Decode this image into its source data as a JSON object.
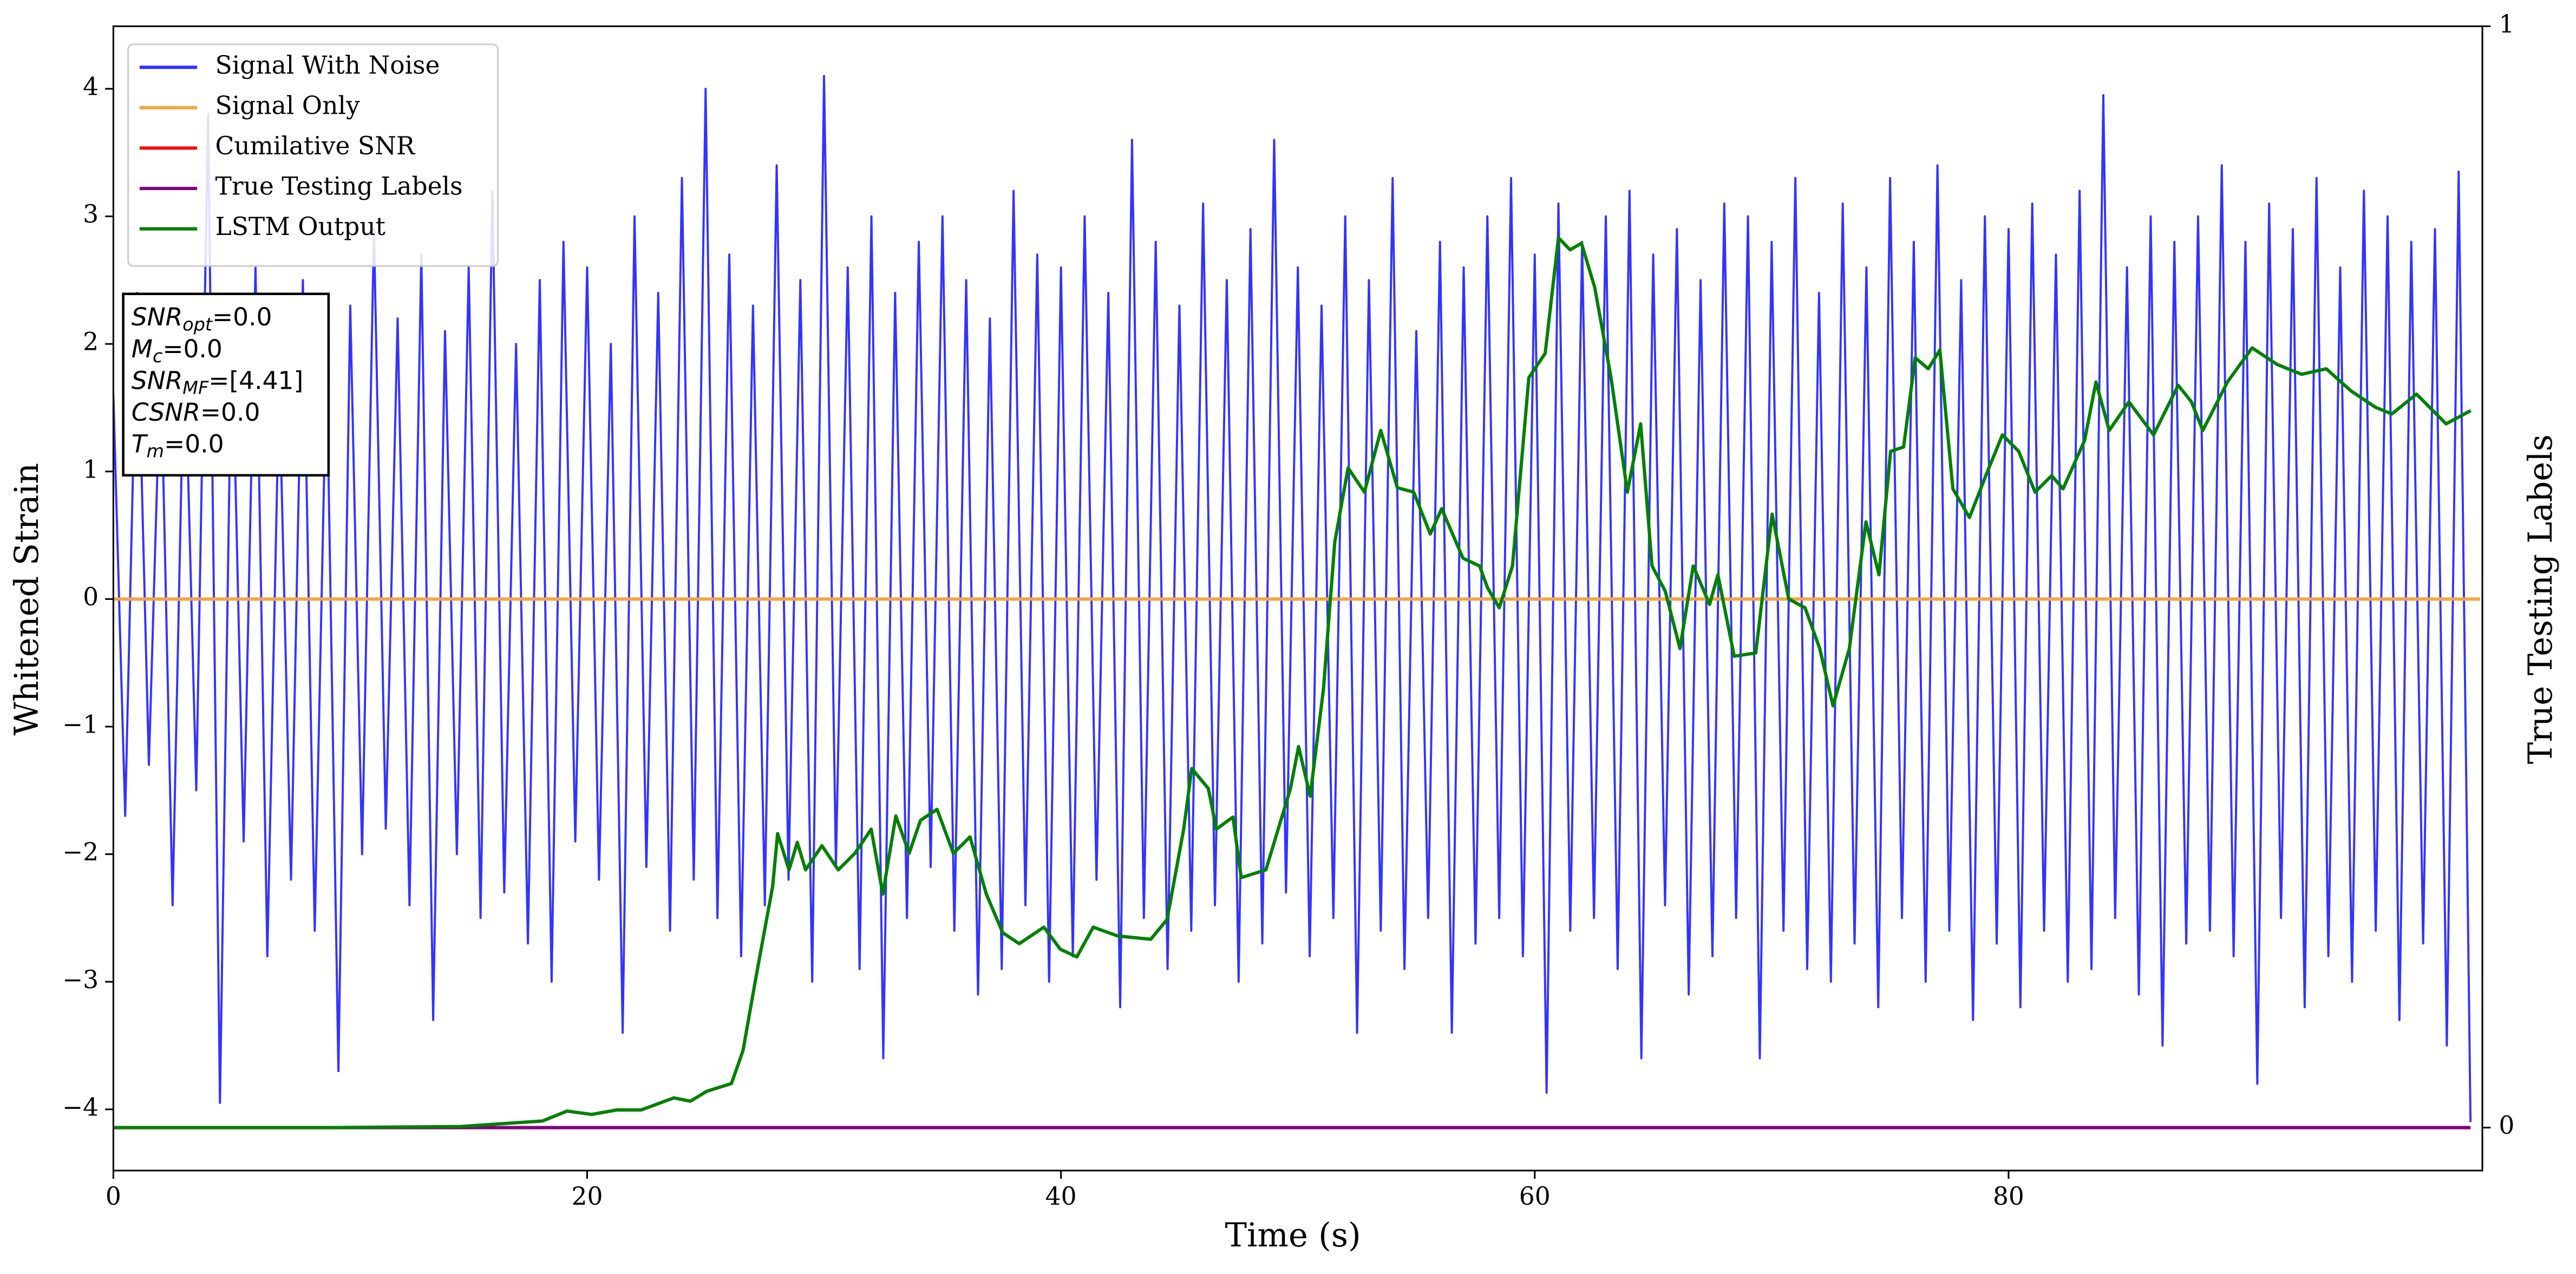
{
  "chart_data": {
    "type": "line",
    "xlabel": "Time (s)",
    "ylabel": "Whitened Strain",
    "y2label": "True Testing Labels",
    "xlim": [
      0,
      100
    ],
    "xticks": [
      0,
      20,
      40,
      60,
      80
    ],
    "ylim": [
      -4.48,
      4.49
    ],
    "yticks": [
      {
        "value": -4,
        "label": "−4"
      },
      {
        "value": -3,
        "label": "−3"
      },
      {
        "value": -2,
        "label": "−2"
      },
      {
        "value": -1,
        "label": "−1"
      },
      0,
      1,
      2,
      3,
      4
    ],
    "y2lim": [
      -0.039,
      1
    ],
    "y2ticks": [
      0,
      1
    ],
    "legend": "upper left",
    "series": [
      {
        "name": "Signal With Noise",
        "color": "#3333ff",
        "x": [
          0,
          0.5,
          1,
          1.5,
          2,
          2.5,
          3,
          3.5,
          4,
          4.5,
          5,
          5.5,
          6,
          6.5,
          7,
          7.5,
          8,
          8.5,
          9,
          9.5,
          10,
          10.5,
          11,
          11.5,
          12,
          12.5,
          13,
          13.5,
          14,
          14.5,
          15,
          15.5,
          16,
          16.5,
          17,
          17.5,
          18,
          18.5,
          19,
          19.5,
          20,
          20.5,
          21,
          21.5,
          22,
          22.5,
          23,
          23.5,
          24,
          24.5,
          25,
          25.5,
          26,
          26.5,
          27,
          27.5,
          28,
          28.5,
          29,
          29.5,
          30,
          30.5,
          31,
          31.5,
          32,
          32.5,
          33,
          33.5,
          34,
          34.5,
          35,
          35.5,
          36,
          36.5,
          37,
          37.5,
          38,
          38.5,
          39,
          39.5,
          40,
          40.5,
          41,
          41.5,
          42,
          42.5,
          43,
          43.5,
          44,
          44.5,
          45,
          45.5,
          46,
          46.5,
          47,
          47.5,
          48,
          48.5,
          49,
          49.5,
          50,
          50.5,
          51,
          51.5,
          52,
          52.5,
          53,
          53.5,
          54,
          54.5,
          55,
          55.5,
          56,
          56.5,
          57,
          57.5,
          58,
          58.5,
          59,
          59.5,
          60,
          60.5,
          61,
          61.5,
          62,
          62.5,
          63,
          63.5,
          64,
          64.5,
          65,
          65.5,
          66,
          66.5,
          67,
          67.5,
          68,
          68.5,
          69,
          69.5,
          70,
          70.5,
          71,
          71.5,
          72,
          72.5,
          73,
          73.5,
          74,
          74.5,
          75,
          75.5,
          76,
          76.5,
          77,
          77.5,
          78,
          78.5,
          79,
          79.5,
          80,
          80.5,
          81,
          81.5,
          82,
          82.5,
          83,
          83.5,
          84,
          84.5,
          85,
          85.5,
          86,
          86.5,
          87,
          87.5,
          88,
          88.5,
          89,
          89.5,
          90,
          90.5,
          91,
          91.5,
          92,
          92.5,
          93,
          93.5,
          94,
          94.5,
          95,
          95.5,
          96,
          96.5,
          97,
          97.5,
          98,
          98.5,
          99,
          99.5
        ],
        "values": [
          1.6,
          -1.7,
          2.4,
          -1.3,
          1.9,
          -2.4,
          2.1,
          -1.5,
          3.8,
          -3.95,
          2.2,
          -1.9,
          2.6,
          -2.8,
          1.7,
          -2.2,
          2.5,
          -2.6,
          1.9,
          -3.7,
          2.3,
          -2.0,
          2.9,
          -1.8,
          2.2,
          -2.4,
          2.7,
          -3.3,
          2.1,
          -2.0,
          2.6,
          -2.5,
          3.2,
          -2.3,
          2.0,
          -2.7,
          2.5,
          -3.0,
          2.8,
          -1.9,
          2.6,
          -2.2,
          2.0,
          -3.4,
          3.0,
          -2.1,
          2.4,
          -2.6,
          3.3,
          -2.2,
          4.0,
          -2.5,
          2.7,
          -2.8,
          2.3,
          -2.4,
          3.4,
          -2.2,
          2.5,
          -3.0,
          4.1,
          -2.1,
          2.6,
          -2.9,
          3.0,
          -3.6,
          2.4,
          -2.5,
          2.8,
          -2.1,
          3.0,
          -2.6,
          2.5,
          -3.1,
          2.2,
          -2.9,
          3.2,
          -2.4,
          2.7,
          -3.0,
          2.6,
          -2.8,
          3.0,
          -2.2,
          2.4,
          -3.2,
          3.6,
          -2.5,
          2.8,
          -2.9,
          2.3,
          -2.6,
          3.1,
          -2.4,
          2.5,
          -3.0,
          2.9,
          -2.7,
          3.6,
          -2.3,
          2.6,
          -2.8,
          2.3,
          -2.5,
          3.0,
          -3.4,
          2.5,
          -2.6,
          3.3,
          -2.9,
          2.1,
          -2.5,
          2.8,
          -3.4,
          2.6,
          -2.7,
          3.0,
          -2.5,
          3.3,
          -2.8,
          2.7,
          -3.87,
          3.1,
          -2.6,
          2.8,
          -2.5,
          3.0,
          -2.9,
          3.2,
          -3.6,
          2.7,
          -2.4,
          2.9,
          -3.1,
          2.5,
          -2.8,
          3.1,
          -2.5,
          3.0,
          -3.6,
          2.8,
          -2.6,
          3.3,
          -2.9,
          2.4,
          -3.0,
          3.1,
          -2.7,
          2.6,
          -3.2,
          3.3,
          -2.5,
          2.8,
          -3.0,
          3.4,
          -2.6,
          2.5,
          -3.3,
          3.0,
          -2.7,
          2.9,
          -3.2,
          3.1,
          -2.6,
          2.7,
          -3.0,
          3.2,
          -2.9,
          3.95,
          -2.5,
          2.6,
          -3.1,
          3.0,
          -3.5,
          2.8,
          -2.7,
          3.0,
          -2.6,
          3.4,
          -2.8,
          2.8,
          -3.8,
          3.1,
          -2.5,
          2.9,
          -3.2,
          3.3,
          -2.8,
          2.6,
          -3.0,
          3.2,
          -2.6,
          3.0,
          -3.3,
          2.8,
          -2.7,
          2.9,
          -3.5,
          3.35,
          -4.1
        ]
      },
      {
        "name": "Signal Only",
        "color": "#f5a540",
        "x": [
          0,
          99.9
        ],
        "values": [
          0,
          0
        ]
      },
      {
        "name": "Cumilative SNR",
        "color": "red",
        "axis": "y2",
        "x": [
          0,
          99.5
        ],
        "values": [
          0,
          0
        ]
      },
      {
        "name": "True Testing Labels",
        "color": "purple",
        "axis": "y2",
        "x": [
          0,
          99.5
        ],
        "values": [
          0,
          0
        ]
      },
      {
        "name": "LSTM Output",
        "color": "green",
        "axis": "y2",
        "x": [
          0,
          9.09,
          14.64,
          16.03,
          18.11,
          19.15,
          20.19,
          21.24,
          22.28,
          23.66,
          24.36,
          25.05,
          26.09,
          26.58,
          27.13,
          27.83,
          28.04,
          28.52,
          28.87,
          29.22,
          29.91,
          30.6,
          31.3,
          31.99,
          32.48,
          33.03,
          33.59,
          34.07,
          34.77,
          35.46,
          36.16,
          36.85,
          37.54,
          38.24,
          39.28,
          39.97,
          40.67,
          41.36,
          42.4,
          43.79,
          44.48,
          45.18,
          45.52,
          46.22,
          46.56,
          47.26,
          47.61,
          48.65,
          49.69,
          50.03,
          50.52,
          51.08,
          51.56,
          52.12,
          52.81,
          53.5,
          54.2,
          54.89,
          55.59,
          56.07,
          56.97,
          57.67,
          58.01,
          58.5,
          59.06,
          59.75,
          60.44,
          61.0,
          61.49,
          61.97,
          62.53,
          63.22,
          63.91,
          64.47,
          64.95,
          65.51,
          66.13,
          66.69,
          67.38,
          67.73,
          68.42,
          69.33,
          70.02,
          70.72,
          71.41,
          72.03,
          72.59,
          73.28,
          73.98,
          74.53,
          75.02,
          75.57,
          76.06,
          76.61,
          77.1,
          77.65,
          78.35,
          79.04,
          79.74,
          80.43,
          81.12,
          81.82,
          82.3,
          83.21,
          83.69,
          84.25,
          85.08,
          86.12,
          87.16,
          87.72,
          88.2,
          89.24,
          90.28,
          91.33,
          92.37,
          93.41,
          94.45,
          95.49,
          96.18,
          97.22,
          98.47,
          99.51
        ],
        "values": [
          0,
          0,
          0.001,
          0.003,
          0.006,
          0.015,
          0.012,
          0.016,
          0.016,
          0.027,
          0.024,
          0.033,
          0.04,
          0.07,
          0.137,
          0.219,
          0.267,
          0.234,
          0.259,
          0.234,
          0.256,
          0.234,
          0.249,
          0.271,
          0.212,
          0.283,
          0.249,
          0.279,
          0.289,
          0.249,
          0.264,
          0.212,
          0.177,
          0.167,
          0.182,
          0.162,
          0.155,
          0.182,
          0.174,
          0.171,
          0.189,
          0.271,
          0.326,
          0.308,
          0.271,
          0.282,
          0.227,
          0.234,
          0.308,
          0.346,
          0.301,
          0.398,
          0.532,
          0.599,
          0.577,
          0.633,
          0.581,
          0.577,
          0.539,
          0.562,
          0.517,
          0.51,
          0.49,
          0.472,
          0.51,
          0.681,
          0.703,
          0.808,
          0.797,
          0.803,
          0.763,
          0.681,
          0.577,
          0.639,
          0.51,
          0.487,
          0.435,
          0.51,
          0.475,
          0.502,
          0.428,
          0.431,
          0.557,
          0.48,
          0.472,
          0.435,
          0.383,
          0.435,
          0.55,
          0.502,
          0.614,
          0.618,
          0.699,
          0.689,
          0.706,
          0.58,
          0.554,
          0.592,
          0.629,
          0.614,
          0.577,
          0.592,
          0.58,
          0.624,
          0.677,
          0.633,
          0.659,
          0.629,
          0.674,
          0.659,
          0.633,
          0.677,
          0.708,
          0.693,
          0.684,
          0.689,
          0.669,
          0.654,
          0.648,
          0.666,
          0.639,
          0.651
        ]
      }
    ],
    "annotation": [
      {
        "symbol": "SNR",
        "sub": "opt",
        "text": "=0.0"
      },
      {
        "symbol": "M",
        "sub": "c",
        "text": "=0.0"
      },
      {
        "symbol": "SNR",
        "sub": "MF",
        "text": "=[4.41]"
      },
      {
        "symbol": "CSNR",
        "text": "=0.0"
      },
      {
        "symbol": "T",
        "sub": "m",
        "text": "=0.0"
      }
    ]
  }
}
